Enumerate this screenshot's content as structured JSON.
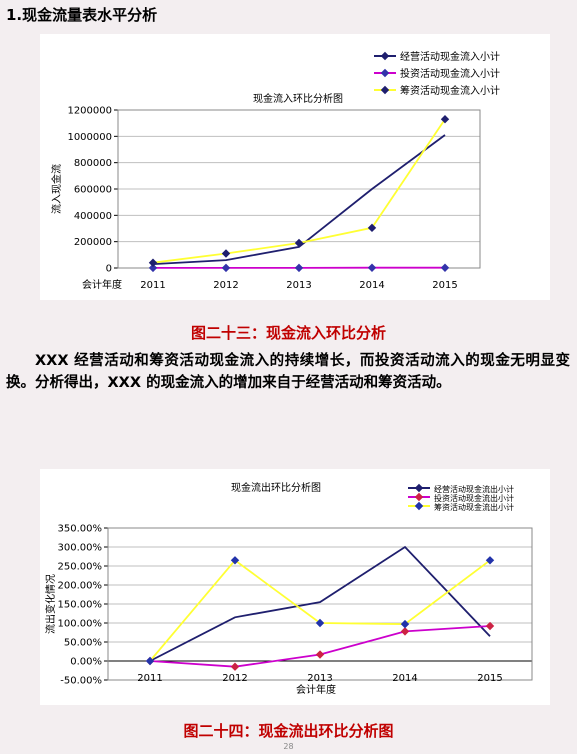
{
  "section_title": "1.现金流量表水平分析",
  "caption1": "图二十三：现金流入环比分析",
  "paragraph": "XXX 经营活动和筹资活动现金流入的持续增长，而投资活动流入的现金无明显变换。分析得出，XXX 的现金流入的增加来自于经营活动和筹资活动。",
  "caption2": "图二十四：现金流出环比分析图",
  "page_number": "28",
  "chart_data": [
    {
      "type": "line",
      "title": "现金流入环比分析图",
      "xlabel": "会计年度",
      "ylabel": "流入现金流",
      "categories": [
        "2011",
        "2012",
        "2013",
        "2014",
        "2015"
      ],
      "ylim": [
        0,
        1200000
      ],
      "yticks": [
        "0",
        "200000",
        "400000",
        "600000",
        "800000",
        "1000000",
        "1200000"
      ],
      "legend_position": "top-right",
      "series": [
        {
          "name": "经营活动现金流入小计",
          "color": "#1f1f6e",
          "marker": "none",
          "values": [
            30000,
            60000,
            160000,
            600000,
            1010000
          ]
        },
        {
          "name": "投资活动现金流入小计",
          "color": "#cc00cc",
          "marker": "diamond",
          "marker_color": "#3333aa",
          "values": [
            1000,
            1000,
            1000,
            2000,
            2000
          ]
        },
        {
          "name": "筹资活动现金流入小计",
          "color": "#ffff33",
          "marker": "diamond",
          "marker_color": "#1f1f6e",
          "values": [
            40000,
            110000,
            190000,
            305000,
            1130000
          ]
        }
      ]
    },
    {
      "type": "line",
      "title": "现金流出环比分析图",
      "xlabel": "会计年度",
      "ylabel": "流出变化情况",
      "categories": [
        "2011",
        "2012",
        "2013",
        "2014",
        "2015"
      ],
      "ylim": [
        -50,
        350
      ],
      "yticks": [
        "-50.00%",
        "0.00%",
        "50.00%",
        "100.00%",
        "150.00%",
        "200.00%",
        "250.00%",
        "300.00%",
        "350.00%"
      ],
      "legend_position": "top-right",
      "series": [
        {
          "name": "经营活动现金流出小计",
          "color": "#1f1f6e",
          "marker": "none",
          "values": [
            0,
            115,
            155,
            300,
            65
          ]
        },
        {
          "name": "投资活动现金流出小计",
          "color": "#cc00cc",
          "marker": "diamond",
          "marker_color": "#cc2244",
          "values": [
            0,
            -15,
            17,
            78,
            92
          ]
        },
        {
          "name": "筹资活动现金流出小计",
          "color": "#ffff33",
          "marker": "diamond",
          "marker_color": "#2233aa",
          "values": [
            0,
            265,
            100,
            97,
            265
          ]
        }
      ]
    }
  ]
}
